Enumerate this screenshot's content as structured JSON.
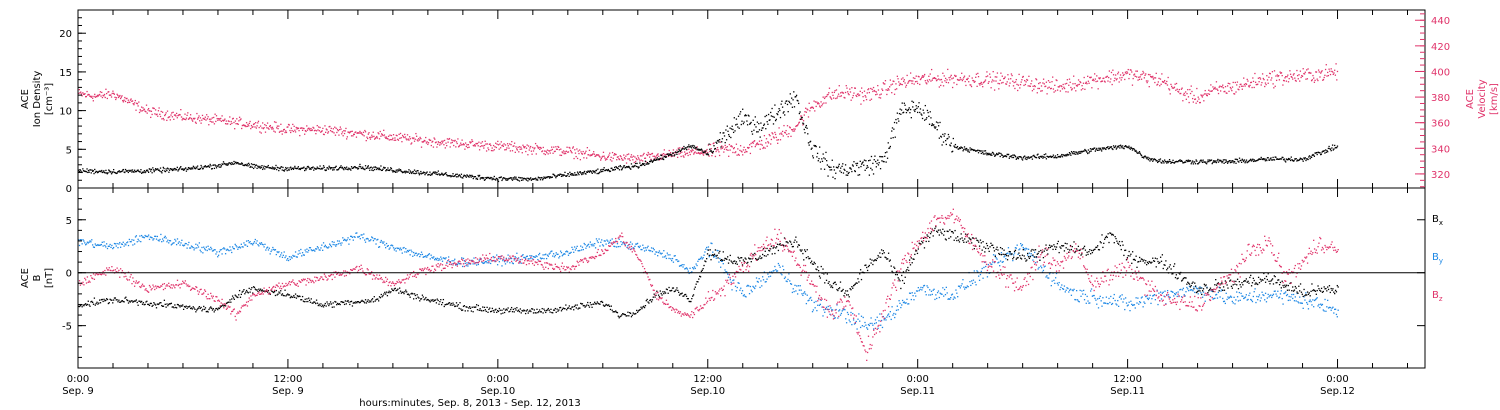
{
  "colors": {
    "black": "#000000",
    "pink": "#e0336a",
    "blue": "#1e88e5",
    "axis": "#000000"
  },
  "chart_data": [
    {
      "type": "scatter",
      "panel": "top",
      "ylabel_left": [
        "ACE",
        "Ion Density",
        "[cm⁻³]"
      ],
      "ylabel_right": [
        "ACE",
        "Velocity",
        "[km/s]"
      ],
      "ylim_left": [
        0,
        23
      ],
      "ylim_right": [
        309,
        448
      ],
      "yticks_left": [
        0,
        5,
        10,
        15,
        20
      ],
      "yticks_right": [
        320,
        340,
        360,
        380,
        400,
        420,
        440
      ],
      "series": [
        {
          "name": "",
          "axis": "left",
          "color": "black",
          "points": [
            [
              0,
              2.3
            ],
            [
              2,
              2.2
            ],
            [
              4,
              2.3
            ],
            [
              6,
              2.5
            ],
            [
              8,
              3.0
            ],
            [
              9,
              3.4
            ],
            [
              10,
              2.8
            ],
            [
              12,
              2.6
            ],
            [
              14,
              2.6
            ],
            [
              16,
              2.8
            ],
            [
              18,
              2.4
            ],
            [
              20,
              2.0
            ],
            [
              22,
              1.6
            ],
            [
              24,
              1.3
            ],
            [
              26,
              1.2
            ],
            [
              28,
              1.8
            ],
            [
              30,
              2.3
            ],
            [
              32,
              3.0
            ],
            [
              34,
              4.5
            ],
            [
              35,
              5.5
            ],
            [
              36,
              4.5
            ],
            [
              37,
              7.0
            ],
            [
              38,
              9.0
            ],
            [
              39,
              8.0
            ],
            [
              40,
              10.0
            ],
            [
              41,
              12.0
            ],
            [
              41.5,
              8.0
            ],
            [
              42,
              5.0
            ],
            [
              43,
              2.5
            ],
            [
              44,
              2.5
            ],
            [
              46,
              3.5
            ],
            [
              47,
              10.0
            ],
            [
              48,
              10.5
            ],
            [
              49,
              8.0
            ],
            [
              50,
              5.5
            ],
            [
              52,
              4.5
            ],
            [
              54,
              4.0
            ],
            [
              56,
              4.2
            ],
            [
              58,
              5.0
            ],
            [
              60,
              5.5
            ],
            [
              61,
              4.0
            ],
            [
              62,
              3.5
            ],
            [
              64,
              3.5
            ],
            [
              66,
              3.5
            ],
            [
              68,
              3.8
            ],
            [
              70,
              3.8
            ],
            [
              72,
              5.5
            ]
          ]
        },
        {
          "name": "",
          "axis": "right",
          "color": "pink",
          "points": [
            [
              0,
              383
            ],
            [
              1,
              381
            ],
            [
              2,
              383
            ],
            [
              3,
              376
            ],
            [
              4,
              369
            ],
            [
              6,
              365
            ],
            [
              8,
              362
            ],
            [
              10,
              359
            ],
            [
              12,
              355
            ],
            [
              14,
              355
            ],
            [
              16,
              352
            ],
            [
              18,
              349
            ],
            [
              20,
              346
            ],
            [
              22,
              344
            ],
            [
              24,
              342
            ],
            [
              26,
              340
            ],
            [
              28,
              338
            ],
            [
              30,
              334
            ],
            [
              32,
              332
            ],
            [
              34,
              336
            ],
            [
              36,
              338
            ],
            [
              38,
              340
            ],
            [
              39,
              344
            ],
            [
              40,
              350
            ],
            [
              41,
              358
            ],
            [
              42,
              374
            ],
            [
              43,
              382
            ],
            [
              44,
              384
            ],
            [
              45,
              382
            ],
            [
              46,
              386
            ],
            [
              47,
              392
            ],
            [
              48,
              394
            ],
            [
              50,
              395
            ],
            [
              52,
              394
            ],
            [
              54,
              392
            ],
            [
              56,
              388
            ],
            [
              58,
              394
            ],
            [
              60,
              398
            ],
            [
              62,
              393
            ],
            [
              63,
              384
            ],
            [
              64,
              380
            ],
            [
              65,
              386
            ],
            [
              66,
              388
            ],
            [
              68,
              395
            ],
            [
              70,
              397
            ],
            [
              72,
              400
            ]
          ]
        }
      ]
    },
    {
      "type": "scatter",
      "panel": "bottom",
      "ylabel": [
        "ACE",
        "B",
        "[nT]"
      ],
      "ylim": [
        -9,
        8
      ],
      "yticks": [
        -5,
        0,
        5
      ],
      "xlabel": "hours:minutes, Sep. 8, 2013 - Sep. 12, 2013",
      "xlim_hours": [
        0,
        77
      ],
      "xtick_hours": [
        0,
        12,
        24,
        36,
        48,
        60,
        72
      ],
      "xtick_labels": [
        {
          "time": "0:00",
          "date": "Sep. 9"
        },
        {
          "time": "12:00",
          "date": "Sep. 9"
        },
        {
          "time": "0:00",
          "date": "Sep.10"
        },
        {
          "time": "12:00",
          "date": "Sep.10"
        },
        {
          "time": "0:00",
          "date": "Sep.11"
        },
        {
          "time": "12:00",
          "date": "Sep.11"
        },
        {
          "time": "0:00",
          "date": "Sep.12"
        }
      ],
      "legend": {
        "labels": [
          "B",
          "B",
          "B"
        ],
        "subs": [
          "x",
          "y",
          "z"
        ]
      },
      "series": [
        {
          "name": "Bx",
          "color": "black",
          "points": [
            [
              0,
              -3.0
            ],
            [
              2,
              -2.5
            ],
            [
              4,
              -2.8
            ],
            [
              6,
              -3.2
            ],
            [
              8,
              -3.5
            ],
            [
              9,
              -2.0
            ],
            [
              10,
              -1.5
            ],
            [
              12,
              -2.0
            ],
            [
              14,
              -3.0
            ],
            [
              15,
              -2.8
            ],
            [
              17,
              -2.5
            ],
            [
              18,
              -1.5
            ],
            [
              20,
              -2.5
            ],
            [
              22,
              -3.2
            ],
            [
              24,
              -3.5
            ],
            [
              26,
              -3.6
            ],
            [
              28,
              -3.3
            ],
            [
              30,
              -2.8
            ],
            [
              31,
              -4.0
            ],
            [
              32,
              -3.5
            ],
            [
              33,
              -2.0
            ],
            [
              34,
              -1.5
            ],
            [
              35,
              -2.5
            ],
            [
              36,
              2.0
            ],
            [
              38,
              1.0
            ],
            [
              40,
              2.5
            ],
            [
              41,
              3.0
            ],
            [
              42,
              1.0
            ],
            [
              43,
              -1.0
            ],
            [
              44,
              -2.0
            ],
            [
              45,
              0.5
            ],
            [
              46,
              2.0
            ],
            [
              47,
              -1.0
            ],
            [
              48,
              2.5
            ],
            [
              49,
              4.0
            ],
            [
              50,
              3.5
            ],
            [
              51,
              3.0
            ],
            [
              52,
              2.5
            ],
            [
              54,
              1.5
            ],
            [
              56,
              2.5
            ],
            [
              58,
              2.0
            ],
            [
              59,
              3.8
            ],
            [
              60,
              1.5
            ],
            [
              62,
              1.0
            ],
            [
              64,
              -1.5
            ],
            [
              66,
              -1.0
            ],
            [
              68,
              -0.5
            ],
            [
              70,
              -1.8
            ],
            [
              72,
              -1.5
            ]
          ]
        },
        {
          "name": "By",
          "color": "blue",
          "points": [
            [
              0,
              3.0
            ],
            [
              2,
              2.5
            ],
            [
              4,
              3.5
            ],
            [
              6,
              2.8
            ],
            [
              8,
              2.0
            ],
            [
              10,
              3.0
            ],
            [
              12,
              1.5
            ],
            [
              14,
              2.5
            ],
            [
              16,
              3.5
            ],
            [
              18,
              2.5
            ],
            [
              20,
              1.5
            ],
            [
              22,
              1.0
            ],
            [
              24,
              1.2
            ],
            [
              26,
              1.5
            ],
            [
              28,
              2.0
            ],
            [
              30,
              3.0
            ],
            [
              32,
              2.5
            ],
            [
              34,
              1.5
            ],
            [
              35,
              0.0
            ],
            [
              36,
              2.5
            ],
            [
              38,
              -2.0
            ],
            [
              40,
              0.5
            ],
            [
              42,
              -3.0
            ],
            [
              44,
              -4.0
            ],
            [
              45,
              -5.0
            ],
            [
              46,
              -4.5
            ],
            [
              47,
              -3.0
            ],
            [
              48,
              -1.5
            ],
            [
              50,
              -2.0
            ],
            [
              52,
              0.5
            ],
            [
              54,
              2.5
            ],
            [
              56,
              -1.0
            ],
            [
              57,
              -2.0
            ],
            [
              59,
              -2.5
            ],
            [
              60,
              -3.0
            ],
            [
              62,
              -2.0
            ],
            [
              64,
              -1.5
            ],
            [
              66,
              -2.5
            ],
            [
              68,
              -2.0
            ],
            [
              70,
              -2.5
            ],
            [
              72,
              -3.5
            ]
          ]
        },
        {
          "name": "Bz",
          "color": "pink",
          "points": [
            [
              0,
              -1.0
            ],
            [
              2,
              0.5
            ],
            [
              4,
              -1.5
            ],
            [
              6,
              -1.0
            ],
            [
              8,
              -2.5
            ],
            [
              9,
              -4.0
            ],
            [
              10,
              -2.0
            ],
            [
              12,
              -1.0
            ],
            [
              14,
              -0.5
            ],
            [
              16,
              0.5
            ],
            [
              18,
              -1.0
            ],
            [
              20,
              0.5
            ],
            [
              22,
              1.0
            ],
            [
              24,
              1.5
            ],
            [
              26,
              1.0
            ],
            [
              28,
              0.5
            ],
            [
              30,
              2.0
            ],
            [
              31,
              3.5
            ],
            [
              32,
              1.5
            ],
            [
              33,
              -2.0
            ],
            [
              34,
              -3.5
            ],
            [
              35,
              -4.0
            ],
            [
              36,
              -2.5
            ],
            [
              38,
              0.5
            ],
            [
              39,
              2.5
            ],
            [
              40,
              3.5
            ],
            [
              42,
              -1.0
            ],
            [
              43,
              -4.0
            ],
            [
              44,
              -2.5
            ],
            [
              45,
              -7.5
            ],
            [
              46,
              -4.0
            ],
            [
              47,
              0.5
            ],
            [
              48,
              3.0
            ],
            [
              49,
              5.0
            ],
            [
              50,
              5.5
            ],
            [
              51,
              3.0
            ],
            [
              52,
              1.0
            ],
            [
              54,
              -1.5
            ],
            [
              55,
              2.0
            ],
            [
              56,
              0.5
            ],
            [
              57,
              2.5
            ],
            [
              58,
              -1.0
            ],
            [
              60,
              0.5
            ],
            [
              62,
              -2.5
            ],
            [
              64,
              -3.0
            ],
            [
              66,
              0.0
            ],
            [
              67,
              2.0
            ],
            [
              68,
              3.0
            ],
            [
              69,
              -0.5
            ],
            [
              70,
              1.0
            ],
            [
              71,
              3.0
            ],
            [
              72,
              2.0
            ]
          ]
        }
      ]
    }
  ]
}
